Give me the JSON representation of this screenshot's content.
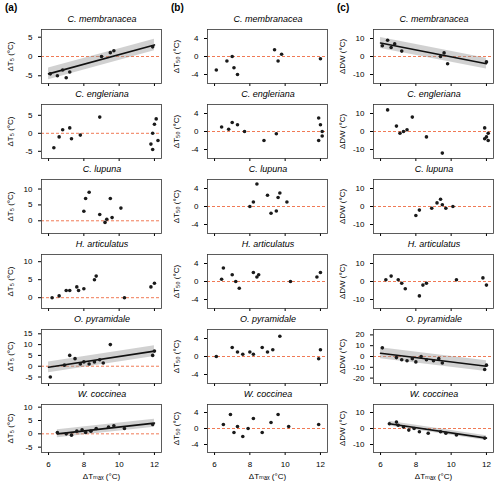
{
  "chart_data": [
    {
      "type": "scatter",
      "panel": "(a)",
      "title": "C. membranacea",
      "ylabel": "ΔT₅ (°C)",
      "tick_labels": "y",
      "color": "#1a1a1a",
      "x": [
        6.1,
        6.5,
        6.8,
        7.0,
        7.2,
        9.0,
        9.5,
        9.7,
        11.9
      ],
      "values": [
        -4.5,
        -5,
        -3.5,
        -5.5,
        -4,
        0,
        1,
        1.5,
        2.5
      ],
      "xlim": [
        5.6,
        12.4
      ],
      "xticks": [
        6,
        8,
        10,
        12
      ],
      "ylim": [
        -7,
        7
      ],
      "yticks": [
        -5,
        0,
        5
      ],
      "reference_line": 0,
      "fit": {
        "x": [
          6,
          12
        ],
        "values": [
          -4.5,
          3
        ],
        "lower": [
          -6,
          1.5
        ],
        "upper": [
          -3,
          4.5
        ]
      }
    },
    {
      "type": "scatter",
      "panel": "(b)",
      "title": "C. membranacea",
      "ylabel": "ΔT₅₀ (°C)",
      "tick_labels": "y",
      "color": "#1a1a1a",
      "x": [
        6.1,
        6.7,
        7.0,
        7.1,
        7.3,
        9.4,
        9.6,
        9.8,
        12.0
      ],
      "values": [
        -3,
        -1,
        0,
        -2.5,
        -4,
        1.5,
        -1,
        0.5,
        -0.5
      ],
      "xlim": [
        5.6,
        12.4
      ],
      "xticks": [
        6,
        8,
        10,
        12
      ],
      "ylim": [
        -6,
        6
      ],
      "yticks": [
        -4,
        0,
        4
      ],
      "reference_line": 0
    },
    {
      "type": "scatter",
      "panel": "(c)",
      "title": "C. membranacea",
      "ylabel": "ΔDW (°C)",
      "tick_labels": "y",
      "color": "#1a1a1a",
      "x": [
        6.1,
        6.4,
        6.6,
        6.8,
        7.2,
        9.4,
        9.6,
        9.8,
        12.0
      ],
      "values": [
        6,
        9,
        5,
        7,
        3,
        0,
        2,
        -4,
        -3
      ],
      "xlim": [
        5.6,
        12.4
      ],
      "xticks": [
        6,
        8,
        10,
        12
      ],
      "ylim": [
        -15,
        15
      ],
      "yticks": [
        -10,
        0,
        10
      ],
      "reference_line": 0,
      "fit": {
        "x": [
          6,
          12
        ],
        "values": [
          7.5,
          -4
        ],
        "lower": [
          4.5,
          -7
        ],
        "upper": [
          10.5,
          -1
        ]
      }
    },
    {
      "type": "scatter",
      "title": "C. engleriana",
      "ylabel": "ΔT₅ (°C)",
      "tick_labels": "y",
      "color": "#1a1a1a",
      "x": [
        6.3,
        6.6,
        6.8,
        7.2,
        7.3,
        7.8,
        8.9,
        11.8,
        11.9,
        12.0,
        12.1,
        12.2,
        11.9
      ],
      "values": [
        -4,
        -1,
        1,
        1.5,
        -1.5,
        -0.5,
        4.5,
        -3,
        0,
        2.5,
        4,
        -2,
        -4.5
      ],
      "xlim": [
        5.6,
        12.4
      ],
      "xticks": [
        6,
        8,
        10,
        12
      ],
      "ylim": [
        -7,
        8
      ],
      "yticks": [
        -5,
        0,
        5
      ],
      "reference_line": 0
    },
    {
      "type": "scatter",
      "title": "C. engleriana",
      "ylabel": "ΔT₅₀ (°C)",
      "tick_labels": "y",
      "color": "#1a1a1a",
      "x": [
        6.4,
        6.8,
        7.0,
        7.3,
        7.7,
        8.8,
        9.5,
        11.9,
        12.0,
        12.1,
        11.9,
        12.1
      ],
      "values": [
        1,
        0.5,
        2,
        1.5,
        0,
        -2,
        -0.5,
        3,
        1.5,
        -1,
        -2,
        0
      ],
      "xlim": [
        5.6,
        12.4
      ],
      "xticks": [
        6,
        8,
        10,
        12
      ],
      "ylim": [
        -6,
        6
      ],
      "yticks": [
        -4,
        0,
        4
      ],
      "reference_line": 0
    },
    {
      "type": "scatter",
      "title": "C. engleriana",
      "ylabel": "ΔDW (°C)",
      "tick_labels": "y",
      "color": "#1a1a1a",
      "x": [
        6.4,
        6.9,
        7.1,
        7.3,
        7.5,
        7.8,
        8.6,
        9.5,
        11.9,
        12.0,
        12.1,
        11.9,
        12.1
      ],
      "values": [
        12,
        3,
        -1,
        0,
        1,
        8,
        -3,
        -12,
        2,
        -3,
        -1,
        -4,
        -5
      ],
      "xlim": [
        5.6,
        12.4
      ],
      "xticks": [
        6,
        8,
        10,
        12
      ],
      "ylim": [
        -15,
        15
      ],
      "yticks": [
        -10,
        0,
        10
      ],
      "reference_line": 0
    },
    {
      "type": "scatter",
      "title": "C. lupuna",
      "ylabel": "ΔT₅ (°C)",
      "tick_labels": "y",
      "color": "#1a1a1a",
      "x": [
        8.0,
        8.1,
        8.3,
        8.9,
        9.2,
        9.3,
        9.5,
        9.6,
        10.1
      ],
      "values": [
        3,
        7,
        9,
        2,
        -0.5,
        0.5,
        7,
        1,
        4
      ],
      "xlim": [
        5.6,
        12.4
      ],
      "xticks": [
        6,
        8,
        10,
        12
      ],
      "ylim": [
        -4,
        13
      ],
      "yticks": [
        0,
        5,
        10
      ],
      "reference_line": 0
    },
    {
      "type": "scatter",
      "title": "C. lupuna",
      "ylabel": "ΔT₅₀ (°C)",
      "tick_labels": "y",
      "color": "#1a1a1a",
      "x": [
        8.0,
        8.2,
        8.4,
        9.0,
        9.2,
        9.5,
        9.6,
        9.7,
        10.1
      ],
      "values": [
        0,
        1,
        5,
        2.5,
        -1.5,
        -1,
        2,
        3,
        1
      ],
      "xlim": [
        5.6,
        12.4
      ],
      "xticks": [
        6,
        8,
        10,
        12
      ],
      "ylim": [
        -6,
        6
      ],
      "yticks": [
        -4,
        0,
        4
      ],
      "reference_line": 0
    },
    {
      "type": "scatter",
      "title": "C. lupuna",
      "ylabel": "ΔDW (°C)",
      "tick_labels": "y",
      "color": "#1a1a1a",
      "x": [
        8.0,
        8.2,
        8.9,
        9.2,
        9.4,
        9.5,
        9.7,
        10.1
      ],
      "values": [
        -5,
        -2,
        -1,
        2,
        4,
        1,
        -1,
        0
      ],
      "xlim": [
        5.6,
        12.4
      ],
      "xticks": [
        6,
        8,
        10,
        12
      ],
      "ylim": [
        -15,
        15
      ],
      "yticks": [
        -10,
        0,
        10
      ],
      "reference_line": 0
    },
    {
      "type": "scatter",
      "title": "H. articulatus",
      "ylabel": "ΔT₅ (°C)",
      "tick_labels": "y",
      "color": "#1a1a1a",
      "x": [
        6.2,
        6.6,
        7.0,
        7.2,
        7.6,
        7.7,
        8.0,
        8.6,
        8.7,
        10.3,
        11.8,
        12.0
      ],
      "values": [
        0,
        0.5,
        2,
        2,
        3,
        2,
        2.5,
        5,
        6,
        0,
        3,
        4
      ],
      "xlim": [
        5.6,
        12.4
      ],
      "xticks": [
        6,
        8,
        10,
        12
      ],
      "ylim": [
        -3,
        12
      ],
      "yticks": [
        0,
        5,
        10
      ],
      "reference_line": 0
    },
    {
      "type": "scatter",
      "title": "H. articulatus",
      "ylabel": "ΔT₅₀ (°C)",
      "tick_labels": "y",
      "color": "#1a1a1a",
      "x": [
        6.4,
        6.5,
        7.0,
        7.2,
        7.4,
        8.2,
        8.4,
        8.5,
        10.3,
        11.8,
        12.0
      ],
      "values": [
        0.5,
        3,
        1.5,
        0,
        -1.5,
        2,
        1,
        1.5,
        0,
        1,
        2
      ],
      "xlim": [
        5.6,
        12.4
      ],
      "xticks": [
        6,
        8,
        10,
        12
      ],
      "ylim": [
        -6,
        6
      ],
      "yticks": [
        -4,
        0,
        4
      ],
      "reference_line": 0
    },
    {
      "type": "scatter",
      "title": "H. articulatus",
      "ylabel": "ΔDW (°C)",
      "tick_labels": "y",
      "color": "#1a1a1a",
      "x": [
        6.3,
        6.6,
        7.0,
        7.2,
        7.4,
        8.2,
        8.4,
        8.6,
        10.3,
        11.8,
        12.0
      ],
      "values": [
        1,
        3,
        1,
        -1,
        -4,
        -8,
        -2,
        -1,
        1,
        2,
        -2
      ],
      "xlim": [
        5.6,
        12.4
      ],
      "xticks": [
        6,
        8,
        10,
        12
      ],
      "ylim": [
        -15,
        15
      ],
      "yticks": [
        -10,
        0,
        10
      ],
      "reference_line": 0
    },
    {
      "type": "scatter",
      "title": "O. pyramidale",
      "ylabel": "ΔT₅ (°C)",
      "tick_labels": "y",
      "color": "#1a1a1a",
      "x": [
        6.1,
        6.9,
        7.2,
        7.5,
        7.8,
        8.0,
        8.3,
        8.6,
        8.9,
        9.1,
        9.5,
        11.9,
        12.0
      ],
      "values": [
        -5,
        0.5,
        5,
        3.5,
        1,
        2,
        1,
        2,
        3,
        1.5,
        10,
        5,
        7
      ],
      "xlim": [
        5.6,
        12.4
      ],
      "xticks": [
        6,
        8,
        10,
        12
      ],
      "ylim": [
        -8,
        17
      ],
      "yticks": [
        -5,
        0,
        5,
        10,
        15
      ],
      "reference_line": 0,
      "fit": {
        "x": [
          6,
          12
        ],
        "values": [
          -0.5,
          7
        ],
        "lower": [
          -3,
          4.5
        ],
        "upper": [
          2,
          9.5
        ]
      }
    },
    {
      "type": "scatter",
      "title": "O. pyramidale",
      "ylabel": "ΔT₅₀ (°C)",
      "tick_labels": "y",
      "color": "#1a1a1a",
      "x": [
        6.1,
        7.0,
        7.3,
        7.6,
        8.0,
        8.2,
        8.7,
        9.0,
        9.3,
        9.7,
        11.9,
        12.0
      ],
      "values": [
        0,
        2,
        1,
        0.5,
        1,
        0.5,
        2,
        1,
        1.5,
        4.5,
        -0.5,
        1.5
      ],
      "xlim": [
        5.6,
        12.4
      ],
      "xticks": [
        6,
        8,
        10,
        12
      ],
      "ylim": [
        -6,
        6
      ],
      "yticks": [
        -4,
        0,
        4
      ],
      "reference_line": 0
    },
    {
      "type": "scatter",
      "title": "O. pyramidale",
      "ylabel": "ΔDW (°C)",
      "tick_labels": "y",
      "color": "#1a1a1a",
      "x": [
        6.1,
        6.9,
        7.2,
        7.5,
        7.8,
        8.0,
        8.3,
        8.6,
        9.0,
        9.3,
        9.5,
        11.9,
        12.0
      ],
      "values": [
        8,
        -1,
        -3,
        -4,
        -2,
        -5,
        0,
        -3,
        -4,
        -2,
        -6,
        -12,
        -8
      ],
      "xlim": [
        5.6,
        12.4
      ],
      "xticks": [
        6,
        8,
        10,
        12
      ],
      "ylim": [
        -25,
        25
      ],
      "yticks": [
        -20,
        -10,
        0,
        10,
        20
      ],
      "reference_line": 0,
      "fit": {
        "x": [
          6,
          12
        ],
        "values": [
          3,
          -9
        ],
        "lower": [
          -2,
          -14
        ],
        "upper": [
          8,
          -4
        ]
      }
    },
    {
      "type": "scatter",
      "title": "W. coccinea",
      "ylabel": "ΔT₅ (°C)",
      "xlabel": "ΔTₘₐₓ (°C)",
      "color": "#1a1a1a",
      "x": [
        6.5,
        7.0,
        7.3,
        7.6,
        7.9,
        8.1,
        8.4,
        8.7,
        9.4,
        9.7,
        10.3,
        11.9
      ],
      "values": [
        0.5,
        0,
        -0.5,
        1,
        1.5,
        0.5,
        1,
        2,
        2.5,
        3,
        2,
        3.5
      ],
      "xlim": [
        5.6,
        12.4
      ],
      "xticks": [
        6,
        8,
        10,
        12
      ],
      "ylim": [
        -7,
        11
      ],
      "yticks": [
        -5,
        0,
        5,
        10
      ],
      "reference_line": 0,
      "fit": {
        "x": [
          6.5,
          12
        ],
        "values": [
          0,
          4
        ],
        "lower": [
          -1.5,
          2.5
        ],
        "upper": [
          1.5,
          5.5
        ]
      }
    },
    {
      "type": "scatter",
      "title": "W. coccinea",
      "ylabel": "ΔT₅₀ (°C)",
      "xlabel": "ΔTₘₐₓ (°C)",
      "color": "#1a1a1a",
      "x": [
        6.5,
        6.9,
        7.1,
        7.3,
        7.6,
        7.9,
        8.2,
        8.7,
        9.2,
        9.6,
        10.2,
        11.9
      ],
      "values": [
        1,
        3.5,
        -1,
        0.5,
        -2,
        0,
        2.5,
        -1,
        1.5,
        3.5,
        0.5,
        1
      ],
      "xlim": [
        5.6,
        12.4
      ],
      "xticks": [
        6,
        8,
        10,
        12
      ],
      "ylim": [
        -6,
        6
      ],
      "yticks": [
        -4,
        0,
        4
      ],
      "reference_line": 0
    },
    {
      "type": "scatter",
      "title": "W. coccinea",
      "ylabel": "ΔDW (°C)",
      "xlabel": "ΔTₘₐₓ (°C)",
      "color": "#1a1a1a",
      "x": [
        6.5,
        6.9,
        7.0,
        7.3,
        7.6,
        7.9,
        8.2,
        8.7,
        9.4,
        9.7,
        10.3,
        11.9
      ],
      "values": [
        3,
        4,
        2,
        1,
        -1,
        0,
        -2,
        -3,
        -2,
        -3,
        -4,
        -6
      ],
      "xlim": [
        5.6,
        12.4
      ],
      "xticks": [
        6,
        8,
        10,
        12
      ],
      "ylim": [
        -15,
        15
      ],
      "yticks": [
        -10,
        0,
        10
      ],
      "reference_line": 0,
      "fit": {
        "x": [
          6.5,
          12
        ],
        "values": [
          3,
          -6
        ],
        "lower": [
          1.5,
          -7.5
        ],
        "upper": [
          4.5,
          -4.5
        ]
      }
    }
  ]
}
